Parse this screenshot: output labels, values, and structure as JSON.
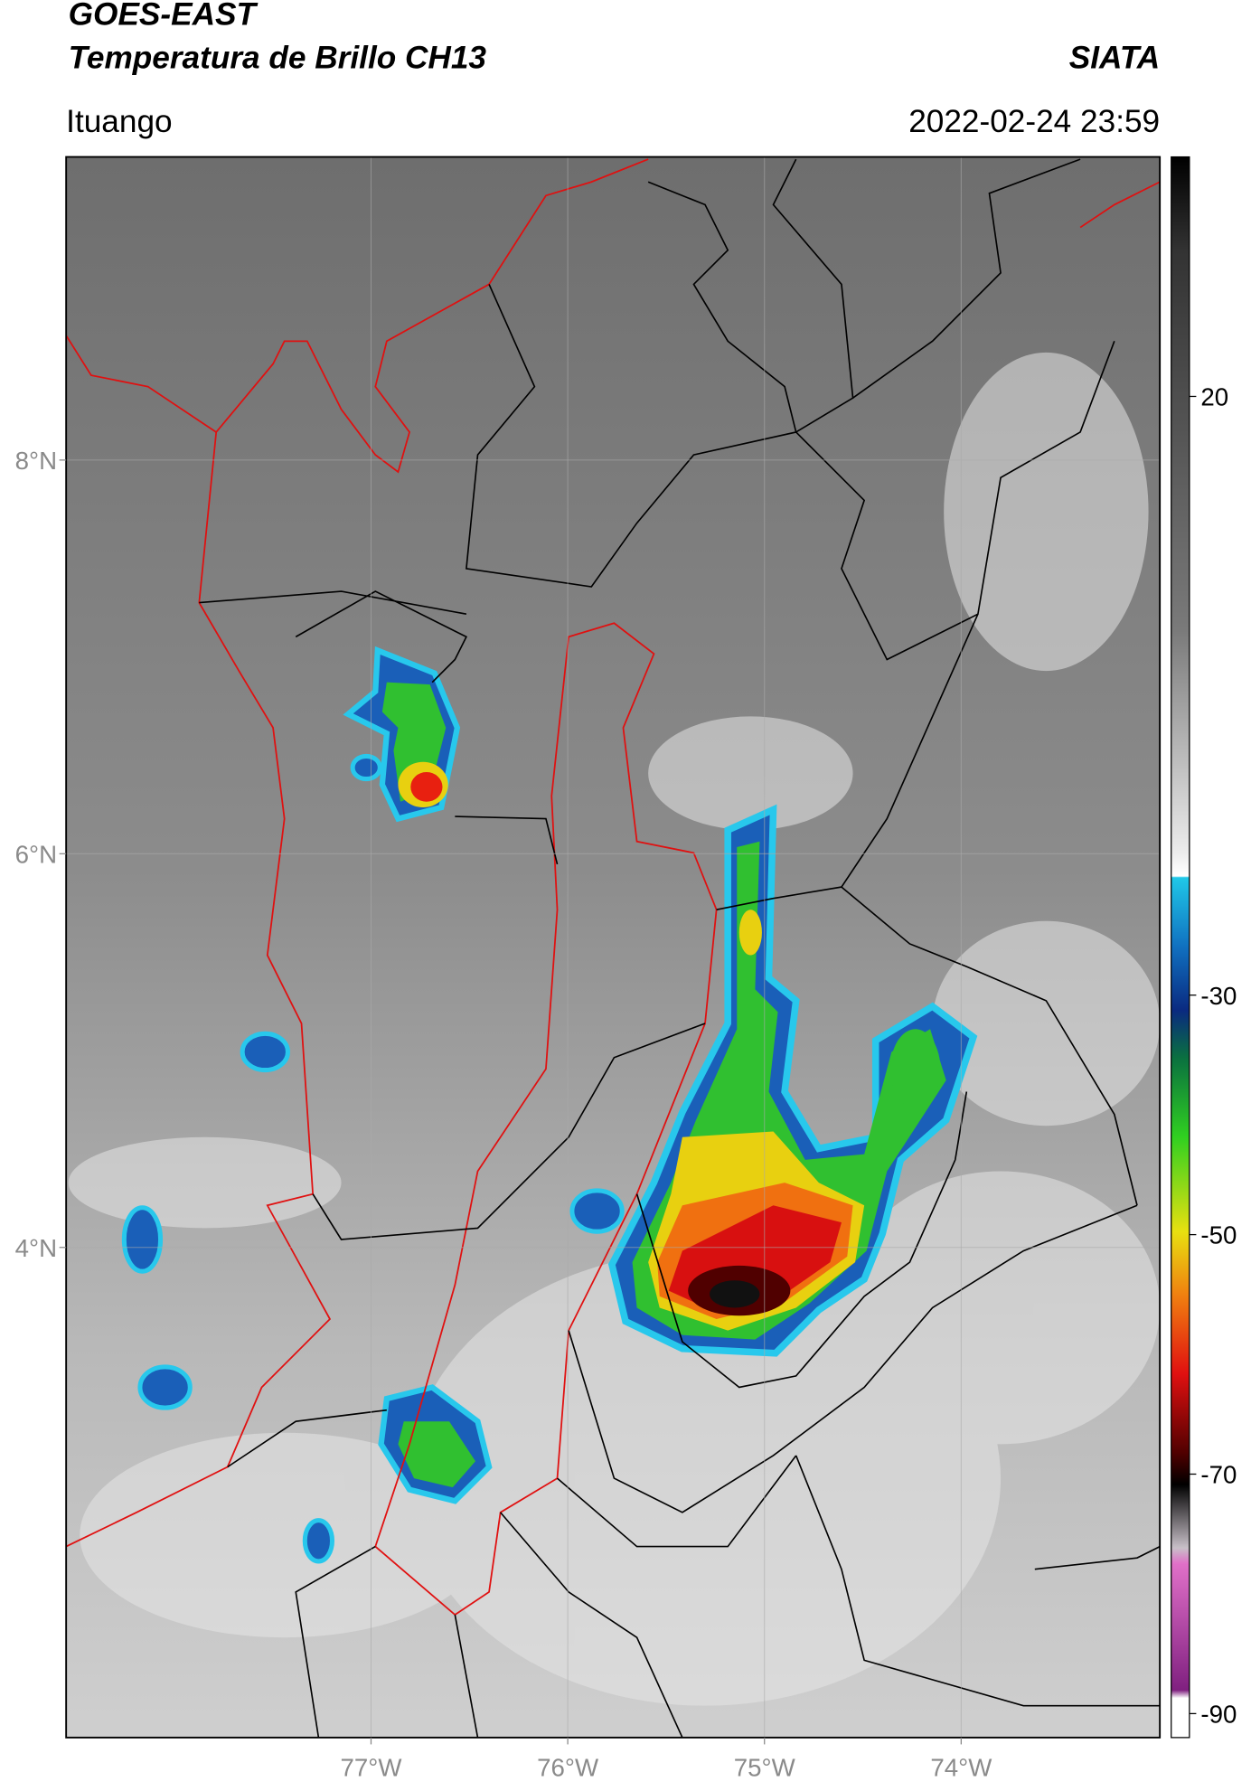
{
  "header": {
    "title": "GOES-EAST",
    "subtitle": "Temperatura de Brillo CH13",
    "brand": "SIATA",
    "location": "Ituango",
    "timestamp": "2022-02-24 23:59"
  },
  "map": {
    "xlim": [
      -78.55,
      -72.99
    ],
    "ylim": [
      1.51,
      9.54
    ],
    "xticks": [
      {
        "value": -77,
        "label": "77°W"
      },
      {
        "value": -76,
        "label": "76°W"
      },
      {
        "value": -75,
        "label": "75°W"
      },
      {
        "value": -74,
        "label": "74°W"
      }
    ],
    "yticks": [
      {
        "value": 8,
        "label": "8°N"
      },
      {
        "value": 6,
        "label": "6°N"
      },
      {
        "value": 4,
        "label": "4°N"
      }
    ],
    "grid": true
  },
  "colorbar": {
    "lim": [
      -92,
      40
    ],
    "ticks": [
      20,
      -30,
      -50,
      -70,
      -90
    ]
  }
}
